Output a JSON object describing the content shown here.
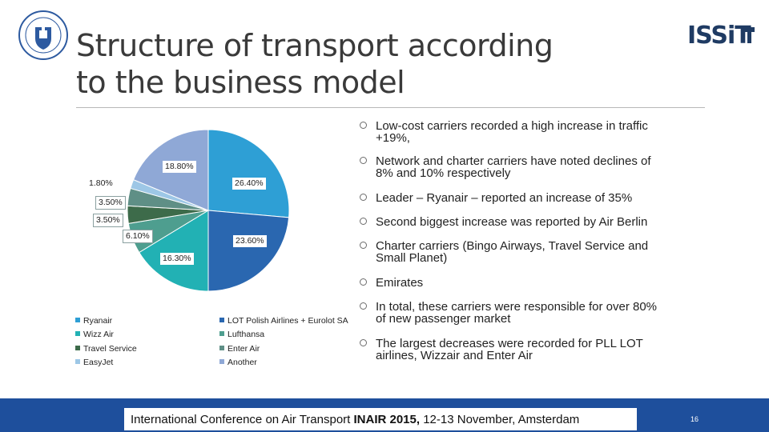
{
  "slide": {
    "title_line1": "Structure of transport according",
    "title_line2": "to the business model",
    "logo_right_text": "ISSiT"
  },
  "chart_data": {
    "type": "pie",
    "values": [
      26.4,
      23.6,
      16.3,
      6.1,
      3.5,
      3.5,
      1.8,
      18.8
    ],
    "labels": [
      "26.40%",
      "23.60%",
      "16.30%",
      "6.10%",
      "3.50%",
      "3.50%",
      "1.80%",
      "18.80%"
    ],
    "colors": [
      "#2e9fd5",
      "#2a67b0",
      "#22b1b4",
      "#4e9e8f",
      "#3d6b4a",
      "#5f8f86",
      "#9dc7e6",
      "#8fa8d6"
    ],
    "legend": [
      {
        "name": "Ryanair",
        "color": "#2e9fd5"
      },
      {
        "name": "Wizz Air",
        "color": "#22b1b4"
      },
      {
        "name": "Travel Service",
        "color": "#3d6b4a"
      },
      {
        "name": "EasyJet",
        "color": "#9dc7e6"
      },
      {
        "name": "LOT Polish Airlines + Eurolot SA",
        "color": "#2a67b0"
      },
      {
        "name": "Lufthansa",
        "color": "#4e9e8f"
      },
      {
        "name": "Enter Air",
        "color": "#5f8f86"
      },
      {
        "name": "Another",
        "color": "#8fa8d6"
      }
    ]
  },
  "bullets": [
    {
      "line1": "Low-cost carriers recorded a high increase in traffic",
      "line2": "+19%,"
    },
    {
      "line1": "Network and charter carriers have noted declines of",
      "line2": "8% and 10% respectively"
    },
    {
      "line1": "Leader – Ryanair  – reported an increase of 35%",
      "line2": ""
    },
    {
      "line1": "Second biggest increase was reported by Air Berlin",
      "line2": ""
    },
    {
      "line1": "Charter carriers (Bingo Airways, Travel Service and",
      "line2": "Small Planet)"
    },
    {
      "line1": "Emirates",
      "line2": ""
    },
    {
      "line1": "In total, these carriers were responsible for over 80%",
      "line2": "of new passenger market"
    },
    {
      "line1": "The largest decreases were recorded for PLL LOT",
      "line2": "airlines, Wizzair and Enter Air"
    }
  ],
  "footer": {
    "prefix": "International Conference on Air Transport ",
    "bold": "INAIR 2015,",
    "suffix": " 12-13 November, Amsterdam",
    "page_number": "16"
  }
}
